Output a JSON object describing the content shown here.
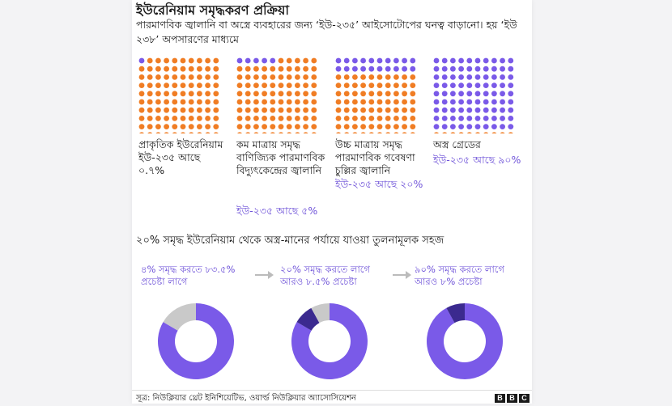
{
  "title": "ইউরেনিয়াম সমৃদ্ধকরণ প্রক্রিয়া",
  "subtitle": "পারমাণবিক জ্বালানি বা অস্ত্রে ব্যবহারের জন্য ‘ইউ-২৩৫’ আইসোটোপের ঘনত্ব বাড়ানো। হয় ‘ইউ ২৩৮’ অপসারণের মাধ্যমে",
  "colors": {
    "orange": "#f07d24",
    "purple": "#7a5ae8",
    "dark_purple": "#3b2a8f",
    "grey": "#c9c9c9"
  },
  "chart_data": [
    {
      "type": "waffle",
      "grid": [
        10,
        10
      ],
      "stages": [
        {
          "label": "প্রাকৃতিক ইউরেনিয়াম ইউ-২৩৫ আছে ০.৭%",
          "pct_text": "",
          "u235_percent": 0.7
        },
        {
          "label": "কম মাত্রায় সমৃদ্ধ বাণিজ্যিক পারমাণবিক বিদ্যুৎকেন্দ্রের জ্বালানি",
          "pct_text": "ইউ-২৩৫ আছে ৫%",
          "u235_percent": 5
        },
        {
          "label": "উচ্চ মাত্রায় সমৃদ্ধ পারমাণবিক গবেষণা চুল্লির জ্বালানি",
          "pct_text": "ইউ-২৩৫ আছে ২০%",
          "u235_percent": 20
        },
        {
          "label": "অস্ত্র গ্রেডের",
          "pct_text": "ইউ-২৩৫ আছে ৯০%",
          "u235_percent": 90
        }
      ]
    },
    {
      "type": "pie",
      "title": "২০% সমৃদ্ধ ইউরেনিয়াম থেকে অস্ত্র-মানের পর্যায়ে যাওয়া তুলনামূলক সহজ",
      "donuts": [
        {
          "text": "৪% সমৃদ্ধ করতে ৮৩.৫% প্রচেষ্টা লাগে",
          "segments": [
            {
              "value": 83.5,
              "color": "purple"
            },
            {
              "value": 16.5,
              "color": "grey"
            }
          ]
        },
        {
          "text": "২০% সমৃদ্ধ করতে লাগে আরও ৮.৫% প্রচেষ্টা",
          "segments": [
            {
              "value": 83.5,
              "color": "purple"
            },
            {
              "value": 8.5,
              "color": "dark_purple"
            },
            {
              "value": 8,
              "color": "grey"
            }
          ]
        },
        {
          "text": "৯০% সমৃদ্ধ করতে লাগে আরও ৮% প্রচেষ্টা",
          "segments": [
            {
              "value": 92,
              "color": "purple"
            },
            {
              "value": 8,
              "color": "dark_purple"
            }
          ]
        }
      ]
    }
  ],
  "source": "সূত্র: নিউক্লিয়ার থ্রেট ইনিশিয়েটিভ, ওয়ার্ল্ড নিউক্লিয়ার অ্যাসোসিয়েশন",
  "logo": [
    "B",
    "B",
    "C"
  ]
}
